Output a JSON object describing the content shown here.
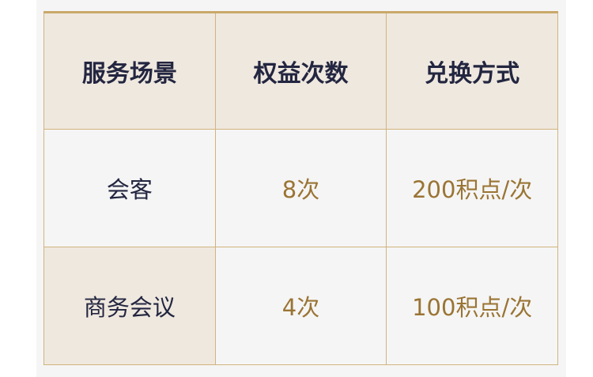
{
  "table": {
    "headers": [
      "服务场景",
      "权益次数",
      "兑换方式"
    ],
    "rows": [
      {
        "scene": "会客",
        "count": "8次",
        "method": "200积点/次"
      },
      {
        "scene": "商务会议",
        "count": "4次",
        "method": "100积点/次"
      }
    ]
  },
  "colors": {
    "header_bg": "#efe8df",
    "border": "#d2b47e",
    "header_text": "#232640",
    "value_text": "#9a7434"
  }
}
